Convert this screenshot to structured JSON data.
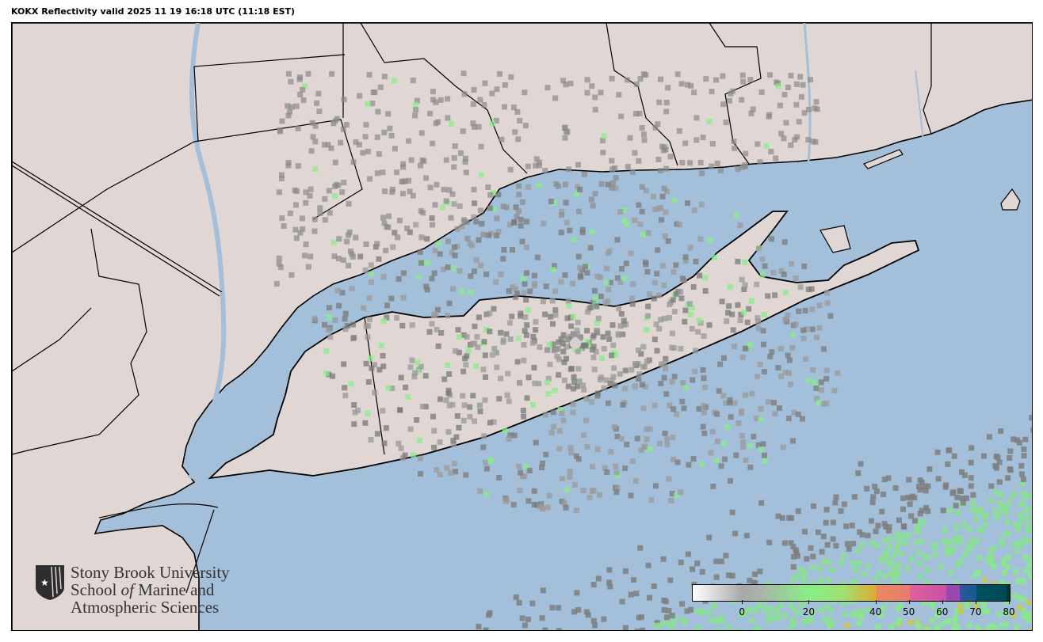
{
  "title": "KOKX Reflectivity valid 2025 11 19 16:18 UTC (11:18 EST)",
  "colors": {
    "ocean": "#a3bfd9",
    "land": "#e0d6d4",
    "border": "#000000"
  },
  "logo": {
    "icon": "shield-star-icon",
    "line1": "Stony Brook University",
    "line2a": "School ",
    "line2b": "of",
    "line2c": " Marine and",
    "line3": "Atmospheric Sciences"
  },
  "colorbar": {
    "range": [
      -15,
      80
    ],
    "units_label": "",
    "ticks": [
      {
        "value": 0,
        "label": "0"
      },
      {
        "value": 20,
        "label": "20"
      },
      {
        "value": 40,
        "label": "40"
      },
      {
        "value": 50,
        "label": "50"
      },
      {
        "value": 60,
        "label": "60"
      },
      {
        "value": 70,
        "label": "70"
      },
      {
        "value": 80,
        "label": "80"
      }
    ],
    "stops": [
      {
        "value": -15,
        "color": "#ffffff"
      },
      {
        "value": 0,
        "color": "#a8a8a8"
      },
      {
        "value": 5,
        "color": "#a9b3a9"
      },
      {
        "value": 20,
        "color": "#88ee88"
      },
      {
        "value": 30,
        "color": "#a0e070"
      },
      {
        "value": 40,
        "color": "#e0aa30"
      },
      {
        "value": 40.1,
        "color": "#e88a60"
      },
      {
        "value": 50,
        "color": "#e87a70"
      },
      {
        "value": 50.1,
        "color": "#e0609a"
      },
      {
        "value": 61,
        "color": "#c850a8"
      },
      {
        "value": 61.1,
        "color": "#9a48b0"
      },
      {
        "value": 65,
        "color": "#9a48b0"
      },
      {
        "value": 65.1,
        "color": "#2a58a0"
      },
      {
        "value": 70,
        "color": "#165a90"
      },
      {
        "value": 70.1,
        "color": "#005060"
      },
      {
        "value": 79,
        "color": "#004a58"
      },
      {
        "value": 79.1,
        "color": "#003a2a"
      },
      {
        "value": 80,
        "color": "#003a2a"
      }
    ]
  }
}
